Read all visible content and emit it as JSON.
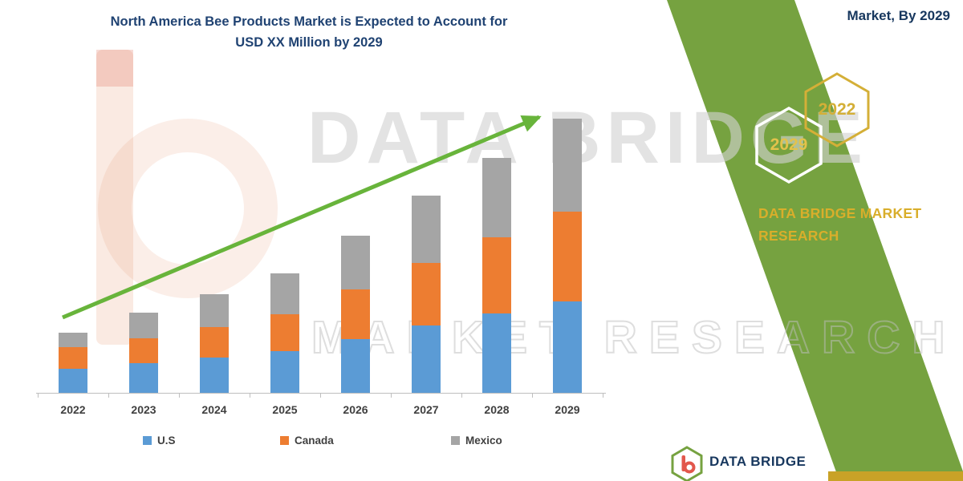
{
  "page": {
    "market_by_label": "Market, By 2029"
  },
  "title": {
    "line1": "North America Bee Products Market is Expected to Account for",
    "line2": "USD XX Million by 2029"
  },
  "chart_data": {
    "type": "bar",
    "stacked": true,
    "title": "North America Bee Products Market is Expected to Account for USD XX Million by 2029",
    "categories": [
      "2022",
      "2023",
      "2024",
      "2025",
      "2026",
      "2027",
      "2028",
      "2029"
    ],
    "series": [
      {
        "name": "U.S",
        "color": "#5B9BD5",
        "values": [
          30,
          37,
          44,
          52,
          67,
          84,
          99,
          114
        ]
      },
      {
        "name": "Canada",
        "color": "#ED7D31",
        "values": [
          27,
          31,
          38,
          46,
          62,
          78,
          95,
          112
        ]
      },
      {
        "name": "Mexico",
        "color": "#A5A5A5",
        "values": [
          18,
          32,
          41,
          51,
          67,
          84,
          99,
          116
        ]
      }
    ],
    "xlabel": "",
    "ylabel": "",
    "value_axis_visible": false,
    "value_unit": "USD Million (values unlabeled, estimated relative units)",
    "legend_position": "bottom",
    "grid": false,
    "trend_arrow": true
  },
  "watermark": {
    "line1": "DATA BRIDGE",
    "line2": "MARKET RESEARCH"
  },
  "side_panel": {
    "hexagon_near": "2029",
    "hexagon_far": "2022",
    "brand_line1": "DATA BRIDGE MARKET",
    "brand_line2": "RESEARCH",
    "accent_green": "#76A240",
    "accent_gold": "#C9A227",
    "arrow_green": "#68B43B"
  },
  "footer": {
    "brand": "DATA BRIDGE"
  }
}
